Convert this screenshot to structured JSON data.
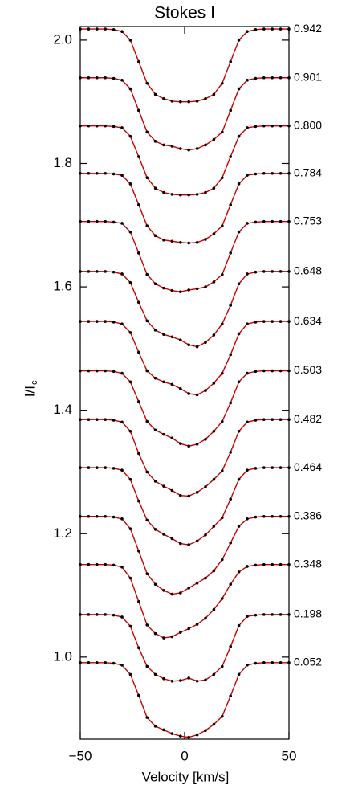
{
  "chart_data": {
    "type": "line",
    "title": "Stokes I",
    "xlabel": "Velocity [km/s]",
    "ylabel": "I/I",
    "ylabel_sub": "c",
    "xlim": [
      -50,
      50
    ],
    "ylim": [
      0.867,
      2.022
    ],
    "xticks": [
      {
        "value": -50,
        "label": "−50"
      },
      0,
      50
    ],
    "yticks": [
      {
        "value": 1.0,
        "label": "1.0"
      },
      1.2,
      1.4,
      1.6,
      1.8,
      {
        "value": 2.0,
        "label": "2.0"
      }
    ],
    "line_color": "#cc0000",
    "marker_color": "#000000",
    "x": [
      -50,
      -46,
      -42,
      -38,
      -34,
      -30,
      -26,
      -22,
      -18,
      -14,
      -10,
      -6,
      -2,
      2,
      6,
      10,
      14,
      18,
      22,
      26,
      30,
      34,
      38,
      42,
      46,
      50
    ],
    "series": [
      {
        "name": "0.942",
        "values": [
          2.018,
          2.018,
          2.018,
          2.018,
          2.017,
          2.014,
          2.0,
          1.965,
          1.93,
          1.912,
          1.905,
          1.901,
          1.9,
          1.9,
          1.901,
          1.905,
          1.912,
          1.93,
          1.965,
          2.0,
          2.014,
          2.017,
          2.018,
          2.018,
          2.018,
          2.018
        ]
      },
      {
        "name": "0.901",
        "values": [
          1.939,
          1.939,
          1.939,
          1.939,
          1.938,
          1.935,
          1.921,
          1.886,
          1.851,
          1.836,
          1.83,
          1.828,
          1.824,
          1.822,
          1.824,
          1.83,
          1.839,
          1.851,
          1.886,
          1.921,
          1.935,
          1.938,
          1.939,
          1.939,
          1.939,
          1.939
        ]
      },
      {
        "name": "0.800",
        "values": [
          1.861,
          1.861,
          1.861,
          1.861,
          1.86,
          1.858,
          1.844,
          1.811,
          1.777,
          1.76,
          1.753,
          1.75,
          1.749,
          1.749,
          1.75,
          1.753,
          1.76,
          1.777,
          1.811,
          1.844,
          1.858,
          1.86,
          1.861,
          1.861,
          1.861,
          1.861
        ]
      },
      {
        "name": "0.784",
        "values": [
          1.784,
          1.784,
          1.784,
          1.784,
          1.783,
          1.781,
          1.767,
          1.733,
          1.699,
          1.683,
          1.676,
          1.674,
          1.672,
          1.671,
          1.672,
          1.677,
          1.686,
          1.699,
          1.733,
          1.767,
          1.781,
          1.783,
          1.784,
          1.784,
          1.784,
          1.784
        ]
      },
      {
        "name": "0.753",
        "values": [
          1.706,
          1.706,
          1.706,
          1.706,
          1.705,
          1.703,
          1.689,
          1.655,
          1.62,
          1.605,
          1.598,
          1.594,
          1.592,
          1.595,
          1.597,
          1.6,
          1.608,
          1.62,
          1.655,
          1.689,
          1.703,
          1.705,
          1.706,
          1.706,
          1.706,
          1.706
        ]
      },
      {
        "name": "0.648",
        "values": [
          1.625,
          1.625,
          1.625,
          1.625,
          1.624,
          1.621,
          1.607,
          1.575,
          1.545,
          1.53,
          1.523,
          1.519,
          1.514,
          1.506,
          1.503,
          1.51,
          1.522,
          1.54,
          1.57,
          1.605,
          1.621,
          1.624,
          1.625,
          1.625,
          1.625,
          1.625
        ]
      },
      {
        "name": "0.634",
        "values": [
          1.544,
          1.544,
          1.544,
          1.544,
          1.543,
          1.54,
          1.526,
          1.494,
          1.464,
          1.452,
          1.446,
          1.442,
          1.435,
          1.427,
          1.425,
          1.432,
          1.444,
          1.46,
          1.49,
          1.524,
          1.54,
          1.543,
          1.544,
          1.544,
          1.544,
          1.544
        ]
      },
      {
        "name": "0.503",
        "values": [
          1.464,
          1.464,
          1.464,
          1.464,
          1.463,
          1.46,
          1.446,
          1.414,
          1.382,
          1.368,
          1.361,
          1.355,
          1.346,
          1.342,
          1.345,
          1.353,
          1.366,
          1.382,
          1.412,
          1.446,
          1.46,
          1.463,
          1.464,
          1.464,
          1.464,
          1.464
        ]
      },
      {
        "name": "0.482",
        "values": [
          1.385,
          1.385,
          1.385,
          1.385,
          1.384,
          1.381,
          1.366,
          1.33,
          1.3,
          1.285,
          1.277,
          1.27,
          1.262,
          1.261,
          1.267,
          1.276,
          1.288,
          1.302,
          1.332,
          1.366,
          1.381,
          1.384,
          1.385,
          1.385,
          1.385,
          1.385
        ]
      },
      {
        "name": "0.464",
        "values": [
          1.307,
          1.307,
          1.307,
          1.307,
          1.306,
          1.303,
          1.288,
          1.253,
          1.222,
          1.207,
          1.199,
          1.192,
          1.184,
          1.182,
          1.188,
          1.198,
          1.212,
          1.226,
          1.256,
          1.288,
          1.303,
          1.306,
          1.307,
          1.307,
          1.307,
          1.307
        ]
      },
      {
        "name": "0.386",
        "values": [
          1.228,
          1.228,
          1.228,
          1.228,
          1.227,
          1.224,
          1.208,
          1.172,
          1.135,
          1.118,
          1.108,
          1.102,
          1.104,
          1.112,
          1.12,
          1.128,
          1.14,
          1.158,
          1.185,
          1.212,
          1.224,
          1.227,
          1.228,
          1.228,
          1.228,
          1.228
        ]
      },
      {
        "name": "0.348",
        "values": [
          1.15,
          1.15,
          1.15,
          1.15,
          1.149,
          1.146,
          1.128,
          1.09,
          1.052,
          1.038,
          1.031,
          1.033,
          1.04,
          1.046,
          1.053,
          1.063,
          1.077,
          1.095,
          1.118,
          1.138,
          1.147,
          1.149,
          1.15,
          1.15,
          1.15,
          1.15
        ]
      },
      {
        "name": "0.198",
        "values": [
          1.069,
          1.069,
          1.069,
          1.069,
          1.068,
          1.065,
          1.05,
          1.015,
          0.985,
          0.972,
          0.965,
          0.961,
          0.962,
          0.966,
          0.961,
          0.963,
          0.972,
          0.985,
          1.017,
          1.051,
          1.066,
          1.068,
          1.069,
          1.069,
          1.069,
          1.069
        ]
      },
      {
        "name": "0.052",
        "values": [
          0.991,
          0.991,
          0.991,
          0.991,
          0.99,
          0.987,
          0.972,
          0.938,
          0.902,
          0.888,
          0.882,
          0.876,
          0.872,
          0.87,
          0.874,
          0.881,
          0.891,
          0.904,
          0.937,
          0.972,
          0.987,
          0.99,
          0.991,
          0.991,
          0.991,
          0.991
        ]
      }
    ]
  }
}
